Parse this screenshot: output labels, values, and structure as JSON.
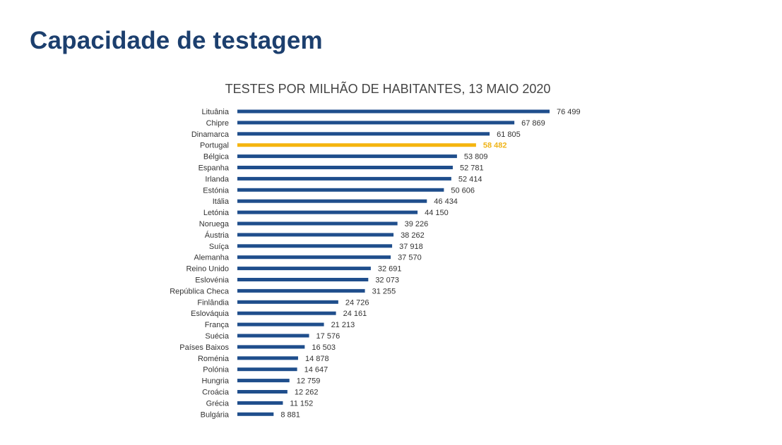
{
  "slide": {
    "title": "Capacidade de testagem"
  },
  "colors": {
    "bar": "#1f4e8c",
    "highlight": "#f5b50f",
    "title": "#1c3f6e"
  },
  "chart_data": {
    "type": "bar",
    "orientation": "horizontal",
    "title": "TESTES POR MILHÃO DE HABITANTES, 13 MAIO 2020",
    "highlight_category": "Portugal",
    "categories": [
      "Lituânia",
      "Chipre",
      "Dinamarca",
      "Portugal",
      "Bélgica",
      "Espanha",
      "Irlanda",
      "Estónia",
      "Itália",
      "Letónia",
      "Noruega",
      "Áustria",
      "Suíça",
      "Alemanha",
      "Reino Unido",
      "Eslovénia",
      "República Checa",
      "Finlândia",
      "Eslováquia",
      "França",
      "Suécia",
      "Países Baixos",
      "Roménia",
      "Polónia",
      "Hungria",
      "Croácia",
      "Grécia",
      "Bulgária"
    ],
    "values": [
      76499,
      67869,
      61805,
      58482,
      53809,
      52781,
      52414,
      50606,
      46434,
      44150,
      39226,
      38262,
      37918,
      37570,
      32691,
      32073,
      31255,
      24726,
      24161,
      21213,
      17576,
      16503,
      14878,
      14647,
      12759,
      12262,
      11152,
      8881
    ],
    "value_labels": [
      "76 499",
      "67 869",
      "61 805",
      "58 482",
      "53 809",
      "52 781",
      "52 414",
      "50 606",
      "46 434",
      "44 150",
      "39 226",
      "38 262",
      "37 918",
      "37 570",
      "32 691",
      "32 073",
      "31 255",
      "24 726",
      "24 161",
      "21 213",
      "17 576",
      "16 503",
      "14 878",
      "14 647",
      "12 759",
      "12 262",
      "11 152",
      "8 881"
    ]
  }
}
